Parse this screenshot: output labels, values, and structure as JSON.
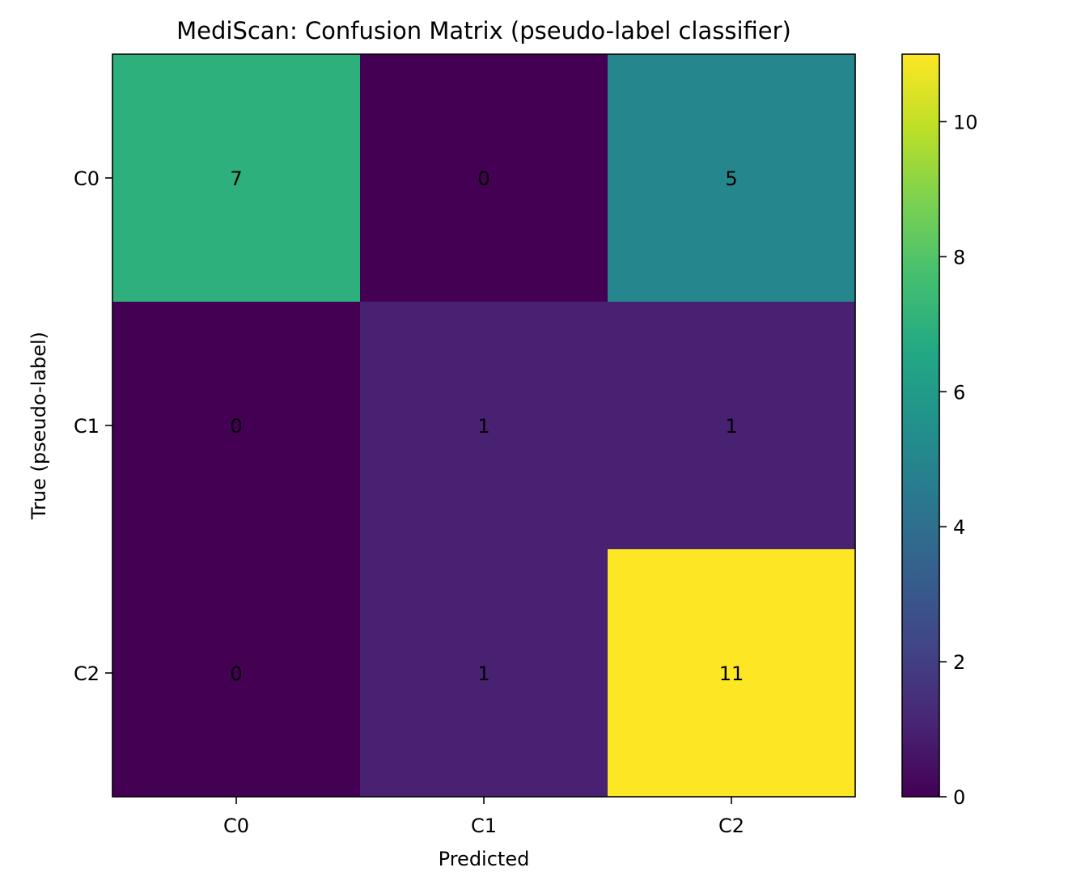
{
  "chart_data": {
    "type": "heatmap",
    "title": "MediScan: Confusion Matrix (pseudo-label classifier)",
    "xlabel": "Predicted",
    "ylabel": "True (pseudo-label)",
    "x_categories": [
      "C0",
      "C1",
      "C2"
    ],
    "y_categories": [
      "C0",
      "C1",
      "C2"
    ],
    "values": [
      [
        7,
        0,
        5
      ],
      [
        0,
        1,
        1
      ],
      [
        0,
        1,
        11
      ]
    ],
    "colorbar": {
      "range": [
        0,
        11
      ],
      "ticks": [
        0,
        2,
        4,
        6,
        8,
        10
      ],
      "colormap": "viridis"
    },
    "grid": false
  }
}
